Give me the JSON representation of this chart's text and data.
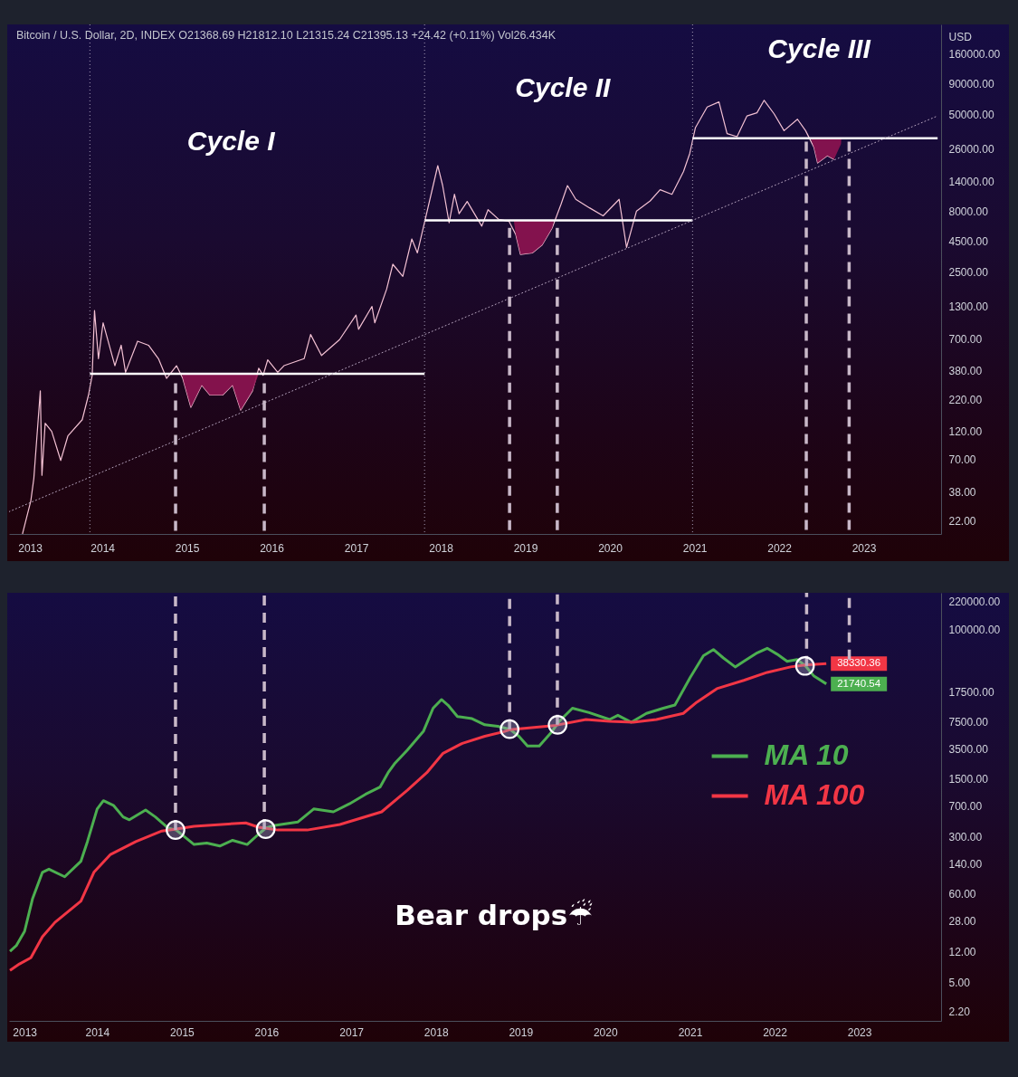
{
  "chart_data": [
    {
      "type": "line",
      "title": "Bitcoin / U.S. Dollar, 2D, INDEX O21368.69 H21812.10 L21315.24 C21395.13 +24.42 (+0.11%) Vol26.434K",
      "ylabel": "USD",
      "log": true,
      "xlim": [
        "2012-11-24",
        "2023-12-01"
      ],
      "ylim": [
        17,
        280000
      ],
      "xticks": [
        "2013",
        "2014",
        "2015",
        "2016",
        "2017",
        "2018",
        "2019",
        "2020",
        "2021",
        "2022",
        "2023"
      ],
      "yticks": [
        {
          "value": 22,
          "label": "22.00"
        },
        {
          "value": 38,
          "label": "38.00"
        },
        {
          "value": 70,
          "label": "70.00"
        },
        {
          "value": 120,
          "label": "120.00"
        },
        {
          "value": 220,
          "label": "220.00"
        },
        {
          "value": 380,
          "label": "380.00"
        },
        {
          "value": 700,
          "label": "700.00"
        },
        {
          "value": 1300,
          "label": "1300.00"
        },
        {
          "value": 2500,
          "label": "2500.00"
        },
        {
          "value": 4500,
          "label": "4500.00"
        },
        {
          "value": 8000,
          "label": "8000.00"
        },
        {
          "value": 14000,
          "label": "14000.00"
        },
        {
          "value": 26000,
          "label": "26000.00"
        },
        {
          "value": 50000,
          "label": "50000.00"
        },
        {
          "value": 90000,
          "label": "90000.00"
        },
        {
          "value": 160000,
          "label": "160000.00"
        }
      ],
      "annotations": [
        "Cycle I",
        "Cycle II",
        "Cycle III"
      ],
      "ref_lines": [
        {
          "axis": "x",
          "value": "2013-11-08",
          "line_style": "dotted",
          "color": "#a59cb5"
        },
        {
          "axis": "x",
          "value": "2017-10-23",
          "line_style": "dotted",
          "color": "#a59cb5"
        },
        {
          "axis": "x",
          "value": "2020-12-23",
          "line_style": "dotted",
          "color": "#a59cb5"
        }
      ],
      "series": [
        {
          "color": "#f3c1d3",
          "x": [
            "2013-01-21",
            "2013-02-26",
            "2013-03-11",
            "2013-04-08",
            "2013-04-15",
            "2013-04-29",
            "2013-05-27",
            "2013-07-05",
            "2013-08-05",
            "2013-10-06",
            "2013-11-02",
            "2013-11-18",
            "2013-11-28",
            "2013-12-15",
            "2014-01-04",
            "2014-02-24",
            "2014-03-23",
            "2014-04-11",
            "2014-06-02",
            "2014-07-19",
            "2014-08-31",
            "2014-10-05",
            "2014-11-17",
            "2014-12-14",
            "2015-01-18",
            "2015-03-06",
            "2015-04-10",
            "2015-06-04",
            "2015-07-17",
            "2015-08-21",
            "2015-10-11",
            "2015-11-07",
            "2015-11-26",
            "2015-12-16",
            "2016-01-28",
            "2016-02-24",
            "2016-05-21",
            "2016-06-18",
            "2016-08-04",
            "2016-10-21",
            "2016-12-31",
            "2017-01-11",
            "2017-03-10",
            "2017-03-22",
            "2017-05-12",
            "2017-06-08",
            "2017-07-21",
            "2017-08-29",
            "2017-09-22",
            "2017-10-19",
            "2017-11-29",
            "2017-12-19",
            "2018-01-09",
            "2018-02-06",
            "2018-03-01",
            "2018-03-21",
            "2018-04-25",
            "2018-06-27",
            "2018-07-24",
            "2018-09-09",
            "2018-10-22",
            "2018-11-21",
            "2018-12-11",
            "2019-01-31",
            "2019-03-15",
            "2019-04-27",
            "2019-06-04",
            "2019-07-02",
            "2019-08-07",
            "2019-10-05",
            "2019-12-03",
            "2020-02-10",
            "2020-03-13",
            "2020-04-25",
            "2020-06-23",
            "2020-08-05",
            "2020-09-25",
            "2020-11-14",
            "2020-12-11",
            "2021-01-04",
            "2021-02-24",
            "2021-04-16",
            "2021-05-21",
            "2021-07-03",
            "2021-08-15",
            "2021-09-27",
            "2021-10-28",
            "2021-12-10",
            "2022-01-22",
            "2022-03-21",
            "2022-04-25",
            "2022-05-31",
            "2022-06-16",
            "2022-07-28",
            "2022-08-26"
          ],
          "values": [
            17,
            32,
            49,
            260,
            52,
            140,
            120,
            69,
            110,
            150,
            240,
            350,
            1200,
            480,
            950,
            420,
            620,
            370,
            670,
            620,
            480,
            330,
            420,
            330,
            190,
            290,
            240,
            240,
            290,
            180,
            260,
            400,
            350,
            470,
            370,
            420,
            480,
            760,
            510,
            690,
            1100,
            840,
            1300,
            950,
            1800,
            2900,
            2300,
            4700,
            3600,
            6000,
            13000,
            19000,
            13000,
            6400,
            11000,
            7600,
            9600,
            6000,
            8200,
            6800,
            6600,
            5100,
            3500,
            3600,
            4200,
            5800,
            9100,
            13000,
            10000,
            8500,
            7300,
            10000,
            4000,
            8000,
            9700,
            12000,
            11000,
            17000,
            24000,
            39000,
            58000,
            64000,
            35000,
            33000,
            49000,
            52000,
            66000,
            51000,
            37000,
            46000,
            37000,
            27000,
            20000,
            23000,
            21395.13
          ]
        },
        {
          "color": "#ffffff",
          "x": [
            "2013-11-08",
            "2014-12-10",
            "2014-12-20",
            "2015-01-18",
            "2015-03-06",
            "2015-04-10",
            "2015-06-04",
            "2015-07-17",
            "2015-08-21",
            "2015-10-11",
            "2015-11-07",
            "2017-10-23"
          ],
          "values": [
            360,
            360,
            360,
            360,
            360,
            360,
            360,
            360,
            360,
            360,
            360,
            360
          ],
          "lower": [
            360,
            360,
            300,
            190,
            290,
            240,
            240,
            290,
            180,
            260,
            360,
            360
          ],
          "upper": [
            360,
            360,
            360,
            360,
            360,
            360,
            360,
            360,
            360,
            360,
            360,
            360
          ]
        },
        {
          "color": "#ffffff",
          "x": [
            "2017-10-23",
            "2018-11-12",
            "2018-11-21",
            "2018-12-11",
            "2019-01-31",
            "2019-03-15",
            "2019-04-27",
            "2019-05-05",
            "2020-12-23"
          ],
          "values": [
            6700,
            6700,
            6700,
            6700,
            6700,
            6700,
            6700,
            6700,
            6700
          ],
          "lower": [
            6700,
            6700,
            5100,
            3500,
            3600,
            4200,
            5800,
            6700,
            6700
          ],
          "upper": [
            6700,
            6700,
            6700,
            6700,
            6700,
            6700,
            6700,
            6700,
            6700
          ]
        },
        {
          "color": "#ffffff",
          "x": [
            "2020-12-23",
            "2022-05-17",
            "2022-05-31",
            "2022-06-16",
            "2022-07-28",
            "2022-08-26",
            "2022-09-25",
            "2022-09-26",
            "2023-11-16"
          ],
          "values": [
            32000,
            32000,
            32000,
            32000,
            32000,
            32000,
            32000,
            32000,
            32000
          ],
          "lower": [
            32000,
            32000,
            27000,
            20000,
            23000,
            21395.13,
            28800,
            32000,
            32000
          ],
          "upper": [
            32000,
            32000,
            32000,
            32000,
            32000,
            32000,
            32000,
            32000,
            32000
          ]
        },
        {
          "line_style": "dotted",
          "color": "#b8a6c0",
          "x": [
            "2012-11-24",
            "2023-11-16"
          ],
          "values": [
            26,
            49000
          ]
        },
        {
          "line_style": "dashed",
          "color": "#c8b8c8",
          "x": [
            "2014-11-13",
            "2014-11-13"
          ],
          "values": [
            300,
            17
          ]
        },
        {
          "line_style": "dashed",
          "color": "#c8b8c8",
          "x": [
            "2015-12-01",
            "2015-12-01"
          ],
          "values": [
            300,
            17
          ]
        },
        {
          "line_style": "dashed",
          "color": "#c8b8c8",
          "x": [
            "2018-10-25",
            "2018-10-25"
          ],
          "values": [
            5800,
            17
          ]
        },
        {
          "line_style": "dashed",
          "color": "#c8b8c8",
          "x": [
            "2019-05-19",
            "2019-05-19"
          ],
          "values": [
            5800,
            17
          ]
        },
        {
          "line_style": "dashed",
          "color": "#c8b8c8",
          "x": [
            "2022-04-28",
            "2022-04-28"
          ],
          "values": [
            30000,
            17
          ]
        },
        {
          "line_style": "dashed",
          "color": "#c8b8c8",
          "x": [
            "2022-10-30",
            "2022-10-30"
          ],
          "values": [
            30000,
            17
          ]
        }
      ]
    },
    {
      "type": "line",
      "log": true,
      "legend": "right",
      "xlim": [
        "2012-12-17",
        "2023-12-20"
      ],
      "ylim": [
        1.7,
        280000
      ],
      "xticks": [
        "2013",
        "2014",
        "2015",
        "2016",
        "2017",
        "2018",
        "2019",
        "2020",
        "2021",
        "2022",
        "2023"
      ],
      "yticks": [
        {
          "value": 2.2,
          "label": "2.20"
        },
        {
          "value": 5,
          "label": "5.00"
        },
        {
          "value": 12,
          "label": "12.00"
        },
        {
          "value": 28,
          "label": "28.00"
        },
        {
          "value": 60,
          "label": "60.00"
        },
        {
          "value": 140,
          "label": "140.00"
        },
        {
          "value": 300,
          "label": "300.00"
        },
        {
          "value": 700,
          "label": "700.00"
        },
        {
          "value": 1500,
          "label": "1500.00"
        },
        {
          "value": 3500,
          "label": "3500.00"
        },
        {
          "value": 7500,
          "label": "7500.00"
        },
        {
          "value": 17500,
          "label": "17500.00"
        },
        {
          "value": 100000,
          "label": "100000.00"
        },
        {
          "value": 220000,
          "label": "220000.00"
        }
      ],
      "annotations": [
        "Bear drops☔"
      ],
      "series": [
        {
          "name": "MA 10",
          "color": "#4caf50",
          "x": [
            "2012-12-21",
            "2013-01-17",
            "2013-02-22",
            "2013-03-28",
            "2013-05-10",
            "2013-06-07",
            "2013-08-14",
            "2013-10-23",
            "2013-11-20",
            "2014-01-01",
            "2014-01-28",
            "2014-03-12",
            "2014-04-23",
            "2014-05-20",
            "2014-07-29",
            "2014-09-09",
            "2014-11-03",
            "2014-12-08",
            "2015-02-23",
            "2015-04-19",
            "2015-06-14",
            "2015-08-08",
            "2015-10-10",
            "2015-11-28",
            "2015-12-29",
            "2016-02-06",
            "2016-05-15",
            "2016-07-23",
            "2016-10-16",
            "2016-12-24",
            "2017-03-03",
            "2017-05-05",
            "2017-06-09",
            "2017-07-06",
            "2017-08-31",
            "2017-11-09",
            "2017-12-20",
            "2018-01-25",
            "2018-02-22",
            "2018-04-04",
            "2018-06-06",
            "2018-07-31",
            "2018-09-25",
            "2018-11-15",
            "2018-12-25",
            "2019-01-31",
            "2019-03-23",
            "2019-05-12",
            "2019-06-17",
            "2019-08-13",
            "2019-10-24",
            "2020-01-20",
            "2020-02-25",
            "2020-04-23",
            "2020-06-27",
            "2020-09-08",
            "2020-10-28",
            "2021-01-02",
            "2021-02-28",
            "2021-04-12",
            "2021-05-25",
            "2021-07-15",
            "2021-08-21",
            "2021-10-18",
            "2021-11-30",
            "2022-01-12",
            "2022-02-24",
            "2022-04-08",
            "2022-05-14",
            "2022-06-20",
            "2022-08-12"
          ],
          "values": [
            12,
            14,
            21,
            52,
            110,
            120,
            97,
            150,
            260,
            650,
            820,
            720,
            520,
            480,
            630,
            520,
            380,
            360,
            240,
            250,
            230,
            270,
            240,
            320,
            380,
            410,
            450,
            650,
            600,
            750,
            980,
            1200,
            1800,
            2300,
            3400,
            5800,
            11000,
            14000,
            12000,
            8700,
            8200,
            6900,
            6600,
            6100,
            5000,
            3800,
            3800,
            5500,
            7600,
            11000,
            9700,
            8000,
            9000,
            7400,
            9500,
            11000,
            12000,
            26000,
            48000,
            57000,
            45000,
            35000,
            41000,
            52000,
            59000,
            50000,
            41000,
            43000,
            36000,
            27000,
            21740.54
          ],
          "value_labels": [
            null,
            null,
            null,
            null,
            null,
            null,
            null,
            null,
            null,
            null,
            null,
            null,
            null,
            null,
            null,
            null,
            null,
            null,
            null,
            null,
            null,
            null,
            null,
            null,
            null,
            null,
            null,
            null,
            null,
            null,
            null,
            null,
            null,
            null,
            null,
            null,
            null,
            null,
            null,
            null,
            null,
            null,
            null,
            null,
            null,
            null,
            null,
            null,
            null,
            null,
            null,
            null,
            null,
            null,
            null,
            null,
            null,
            null,
            null,
            null,
            null,
            null,
            null,
            null,
            null,
            null,
            null,
            null,
            null,
            null,
            "21740.54"
          ]
        },
        {
          "name": "MA 100",
          "color": "#f23645",
          "x": [
            "2012-12-21",
            "2013-01-31",
            "2013-03-21",
            "2013-05-10",
            "2013-07-03",
            "2013-10-23",
            "2013-12-18",
            "2014-02-26",
            "2014-06-17",
            "2014-10-07",
            "2014-12-08",
            "2015-02-23",
            "2015-10-04",
            "2015-11-28",
            "2016-02-19",
            "2016-06-25",
            "2016-11-13",
            "2017-05-12",
            "2017-08-31",
            "2017-11-23",
            "2018-02-01",
            "2018-04-25",
            "2018-07-31",
            "2018-10-22",
            "2018-11-15",
            "2019-06-03",
            "2019-10-10",
            "2020-01-20",
            "2020-05-01",
            "2020-08-09",
            "2020-12-03",
            "2021-01-30",
            "2021-04-27",
            "2021-08-21",
            "2021-11-30",
            "2022-03-11",
            "2022-05-14",
            "2022-08-12"
          ],
          "values": [
            7,
            8.4,
            10,
            18,
            27,
            49,
            110,
            180,
            260,
            350,
            370,
            400,
            440,
            390,
            360,
            360,
            420,
            600,
            1100,
            1800,
            3100,
            4100,
            5000,
            5700,
            6000,
            6800,
            8000,
            7600,
            7400,
            8000,
            9500,
            13000,
            19000,
            24000,
            30000,
            35000,
            37000,
            38330.36
          ],
          "value_labels": [
            null,
            null,
            null,
            null,
            null,
            null,
            null,
            null,
            null,
            null,
            null,
            null,
            null,
            null,
            null,
            null,
            null,
            null,
            null,
            null,
            null,
            null,
            null,
            null,
            null,
            null,
            null,
            null,
            null,
            null,
            null,
            null,
            null,
            null,
            null,
            null,
            null,
            "38330.36"
          ]
        },
        {
          "line_style": "dashed",
          "color": "#c8b8c8",
          "x": [
            "2014-12-05",
            "2014-12-05"
          ],
          "values": [
            280000,
            360
          ]
        },
        {
          "line_style": "dashed",
          "color": "#c8b8c8",
          "x": [
            "2015-12-23",
            "2015-12-23"
          ],
          "values": [
            280000,
            370
          ]
        },
        {
          "line_style": "dashed",
          "color": "#c8b8c8",
          "x": [
            "2018-11-15",
            "2018-11-15"
          ],
          "values": [
            280000,
            6100
          ]
        },
        {
          "line_style": "dashed",
          "color": "#c8b8c8",
          "x": [
            "2019-06-09",
            "2019-06-09"
          ],
          "values": [
            280000,
            6900
          ]
        },
        {
          "line_style": "dashed",
          "color": "#c8b8c8",
          "x": [
            "2022-05-19",
            "2022-05-19"
          ],
          "values": [
            280000,
            36000
          ]
        },
        {
          "line_style": "dashed",
          "color": "#c8b8c8",
          "x": [
            "2022-11-19",
            "2022-11-19"
          ],
          "values": [
            280000,
            43000
          ]
        },
        {
          "type": "scatter",
          "marker": "circle",
          "color": "#ffffff",
          "x": [
            "2014-12-05",
            "2015-12-29",
            "2018-11-15",
            "2019-06-10",
            "2022-05-12"
          ],
          "values": [
            360,
            370,
            6100,
            6900,
            36000
          ]
        }
      ]
    }
  ]
}
